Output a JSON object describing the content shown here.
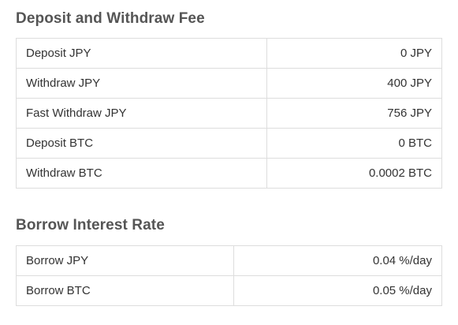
{
  "fees": {
    "title": "Deposit and Withdraw Fee",
    "rows": [
      {
        "label": "Deposit JPY",
        "value": "0 JPY"
      },
      {
        "label": "Withdraw JPY",
        "value": "400 JPY"
      },
      {
        "label": "Fast Withdraw JPY",
        "value": "756 JPY"
      },
      {
        "label": "Deposit BTC",
        "value": "0 BTC"
      },
      {
        "label": "Withdraw BTC",
        "value": "0.0002 BTC"
      }
    ]
  },
  "interest": {
    "title": "Borrow Interest Rate",
    "rows": [
      {
        "label": "Borrow JPY",
        "value": "0.04 %/day"
      },
      {
        "label": "Borrow BTC",
        "value": "0.05 %/day"
      }
    ]
  }
}
